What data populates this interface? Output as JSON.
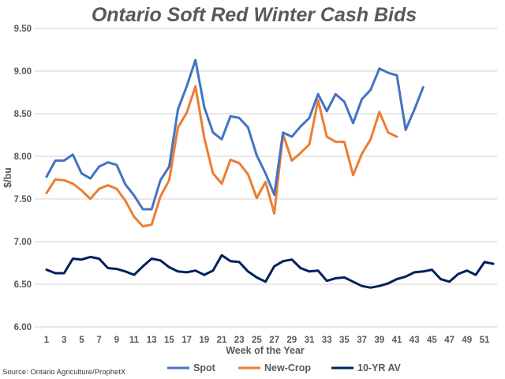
{
  "chart_data": {
    "type": "line",
    "title": "Ontario Soft Red Winter Cash Bids",
    "xlabel": "Week of the Year",
    "ylabel": "$/bu",
    "ylim": [
      6.0,
      9.5
    ],
    "yticks": [
      "6.00",
      "6.50",
      "7.00",
      "7.50",
      "8.00",
      "8.50",
      "9.00",
      "9.50"
    ],
    "xlim": [
      1,
      52
    ],
    "xticks": [
      "1",
      "3",
      "5",
      "7",
      "9",
      "11",
      "13",
      "15",
      "17",
      "19",
      "21",
      "23",
      "25",
      "27",
      "29",
      "31",
      "33",
      "35",
      "37",
      "39",
      "41",
      "43",
      "45",
      "47",
      "49",
      "51"
    ],
    "grid": true,
    "legend_position": "bottom",
    "source": "Source: Ontario Agriculture/ProphetX",
    "series": [
      {
        "name": "Spot",
        "color": "#4472C4",
        "values": [
          7.76,
          7.95,
          7.95,
          8.02,
          7.8,
          7.74,
          7.88,
          7.93,
          7.9,
          7.67,
          7.54,
          7.38,
          7.38,
          7.72,
          7.88,
          8.55,
          8.82,
          9.13,
          8.58,
          8.28,
          8.2,
          8.47,
          8.45,
          8.34,
          8.01,
          7.8,
          7.55,
          8.28,
          8.23,
          8.35,
          8.45,
          8.73,
          8.53,
          8.73,
          8.64,
          8.39,
          8.67,
          8.78,
          9.03,
          8.98,
          8.95,
          8.31,
          8.55,
          8.81
        ]
      },
      {
        "name": "New-Crop",
        "color": "#ED7D31",
        "values": [
          7.57,
          7.73,
          7.72,
          7.68,
          7.6,
          7.5,
          7.62,
          7.66,
          7.62,
          7.48,
          7.29,
          7.18,
          7.2,
          7.53,
          7.72,
          8.34,
          8.51,
          8.82,
          8.22,
          7.8,
          7.68,
          7.96,
          7.92,
          7.79,
          7.51,
          7.7,
          7.33,
          8.26,
          7.95,
          8.04,
          8.14,
          8.66,
          8.23,
          8.17,
          8.17,
          7.78,
          8.03,
          8.2,
          8.52,
          8.28,
          8.23
        ]
      },
      {
        "name": "10-YR AV",
        "color": "#002060",
        "values": [
          6.67,
          6.63,
          6.63,
          6.8,
          6.79,
          6.82,
          6.8,
          6.69,
          6.68,
          6.65,
          6.61,
          6.71,
          6.8,
          6.78,
          6.7,
          6.65,
          6.64,
          6.66,
          6.61,
          6.66,
          6.84,
          6.77,
          6.76,
          6.65,
          6.58,
          6.53,
          6.71,
          6.77,
          6.79,
          6.69,
          6.65,
          6.66,
          6.54,
          6.57,
          6.58,
          6.53,
          6.48,
          6.46,
          6.48,
          6.51,
          6.56,
          6.59,
          6.64,
          6.65,
          6.67,
          6.56,
          6.53,
          6.62,
          6.66,
          6.61,
          6.76,
          6.74
        ]
      }
    ]
  }
}
